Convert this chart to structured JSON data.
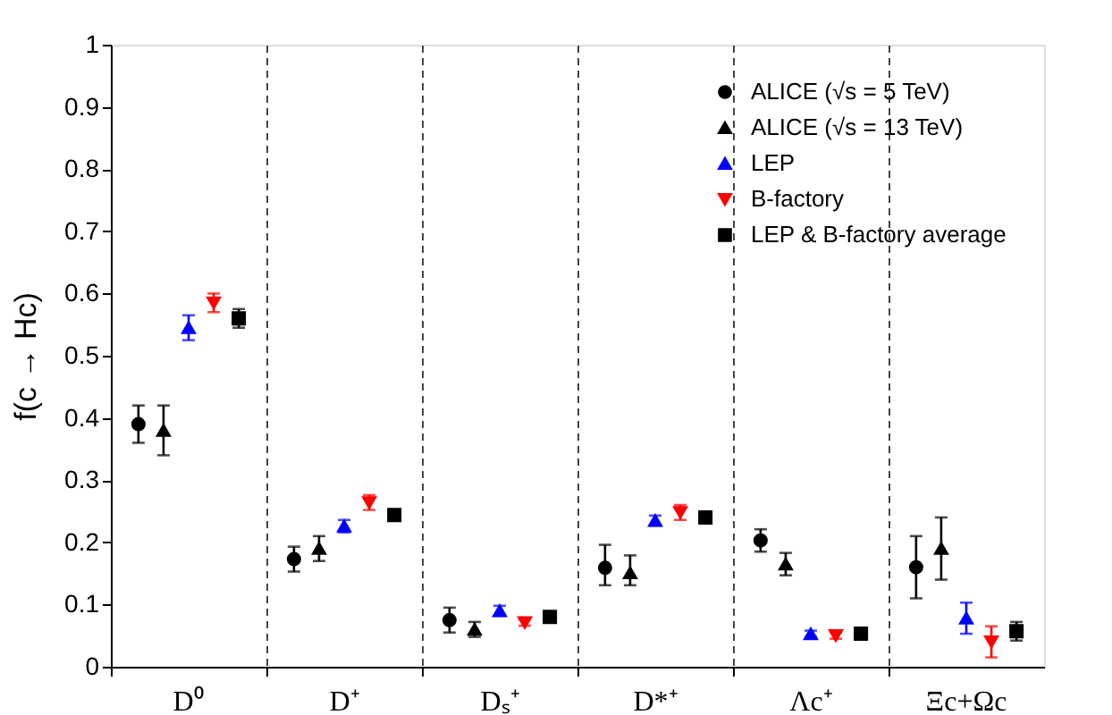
{
  "chart_data": {
    "type": "scatter",
    "ylabel": "f(c → Hc)",
    "categories": [
      "D⁰",
      "D⁺",
      "Dₛ⁺",
      "D*⁺",
      "Λc⁺",
      "Ξc+Ωc"
    ],
    "series": [
      {
        "name": "ALICE (√s = 5 TeV)",
        "color": "#000000",
        "marker": "circle",
        "values": [
          0.39,
          0.173,
          0.075,
          0.159,
          0.203,
          0.16
        ],
        "errors": [
          0.03,
          0.02,
          0.02,
          [
            0.131,
            0.196
          ],
          0.018,
          0.05
        ]
      },
      {
        "name": "ALICE (√s = 13 TeV)",
        "color": "#000000",
        "marker": "triangle",
        "values": [
          0.38,
          0.19,
          0.06,
          0.151,
          0.165,
          0.19
        ],
        "errors": [
          0.04,
          0.02,
          0.012,
          [
            0.131,
            0.179
          ],
          0.018,
          0.05
        ]
      },
      {
        "name": "LEP",
        "color": "#0000ff",
        "marker": "triangle",
        "values": [
          0.545,
          0.226,
          0.09,
          0.235,
          0.053,
          0.078
        ],
        "errors": [
          0.02,
          0.01,
          0.008,
          0.008,
          0.005,
          0.025
        ]
      },
      {
        "name": "B-factory",
        "color": "#ff0000",
        "marker": "triangle-down",
        "values": [
          0.585,
          0.264,
          0.071,
          0.248,
          0.05,
          0.04
        ],
        "errors": [
          0.015,
          0.012,
          0.005,
          0.012,
          0.005,
          0.025
        ]
      },
      {
        "name": "LEP & B-factory average",
        "color": "#000000",
        "marker": "square",
        "values": [
          0.56,
          0.244,
          0.08,
          0.24,
          0.053,
          0.057
        ],
        "errors": [
          0.015,
          0.008,
          0.005,
          0.008,
          0.004,
          0.015
        ]
      }
    ],
    "ylim": [
      0,
      1
    ],
    "yticks": [
      0,
      0.1,
      0.2,
      0.3,
      0.4,
      0.5,
      0.6,
      0.7,
      0.8,
      0.9,
      1
    ],
    "grid": "x",
    "legend": "top right"
  }
}
